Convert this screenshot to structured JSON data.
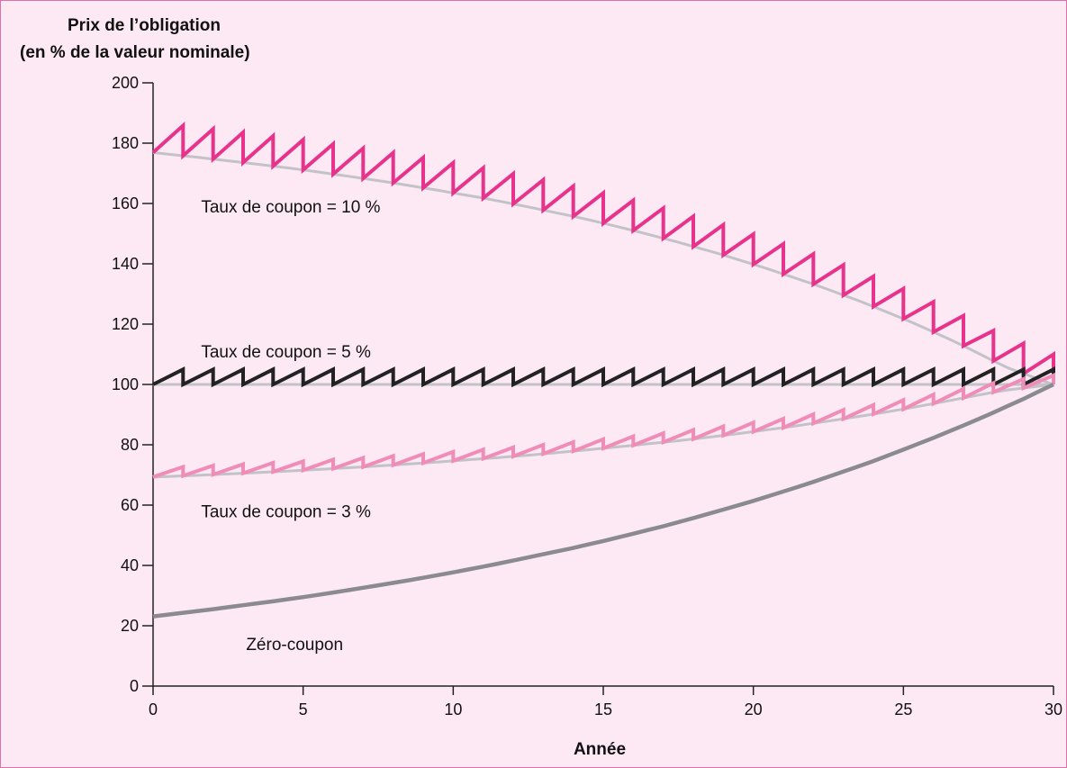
{
  "chart_data": {
    "type": "line",
    "ylabel_line1": "Prix de l’obligation",
    "ylabel_line2": "(en % de la valeur nominale)",
    "xlabel": "Année",
    "xlim": [
      0,
      30
    ],
    "ylim": [
      0,
      200
    ],
    "xticks": [
      0,
      5,
      10,
      15,
      20,
      25,
      30
    ],
    "yticks": [
      0,
      20,
      40,
      60,
      80,
      100,
      120,
      140,
      160,
      180,
      200
    ],
    "grid": false,
    "colors": {
      "c10": "#e8338c",
      "c5": "#222222",
      "c3": "#f08cb8",
      "zero": "#8a8a90",
      "envelope": "#c2c2c8"
    },
    "series": [
      {
        "name": "Taux de coupon = 10 %",
        "label_pos": {
          "x": 1.6,
          "y": 157
        },
        "coupon": 10,
        "values": [
          176.9,
          175.2,
          173.4,
          171.5,
          169.3,
          167.0,
          164.4,
          161.7,
          158.6,
          155.3,
          151.6,
          147.5,
          143.1,
          138.2,
          132.9,
          127.1,
          120.7,
          113.6,
          105.7,
          100.0
        ]
      },
      {
        "name": "Taux de coupon = 5 %",
        "label_pos": {
          "x": 1.6,
          "y": 109
        },
        "coupon": 5,
        "values": [
          100,
          100
        ]
      },
      {
        "name": "Taux de coupon = 3 %",
        "label_pos": {
          "x": 1.6,
          "y": 56
        },
        "coupon": 3,
        "values": [
          69.3,
          70.0,
          70.8,
          71.7,
          72.7,
          73.8,
          75.1,
          76.4,
          78.0,
          79.7,
          81.5,
          83.6,
          85.9,
          88.5,
          91.3,
          94.5,
          97.9,
          100.0
        ]
      },
      {
        "name": "Zéro-coupon",
        "label_pos": {
          "x": 3.1,
          "y": 12
        },
        "coupon": 0,
        "values": [
          23.1,
          24.3,
          25.5,
          26.8,
          28.1,
          29.5,
          31.0,
          32.6,
          34.2,
          35.9,
          37.7,
          39.6,
          41.6,
          43.7,
          45.8,
          48.1,
          50.5,
          53.0,
          55.7,
          58.5,
          61.4,
          64.5,
          67.7,
          71.1,
          74.6,
          78.4,
          82.3,
          86.4,
          90.7,
          95.2,
          100.0
        ]
      }
    ]
  }
}
